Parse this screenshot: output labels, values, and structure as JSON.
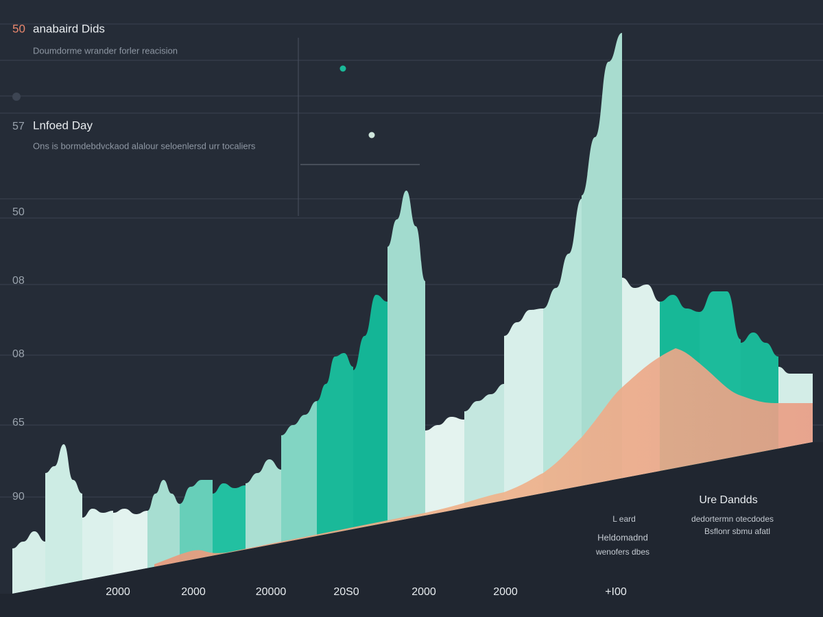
{
  "header": {
    "number": "50",
    "title": "anabaird Dids",
    "subtitle": "Doumdorme wrander forler reacision"
  },
  "annotation": {
    "number": "57",
    "title": "Lnfoed Day",
    "text": "Ons is bormdebdvckaod alalour seloenlersd urr tocaliers"
  },
  "y_labels": [
    "50",
    "08",
    "08",
    "65",
    "90"
  ],
  "x_labels": [
    "2000",
    "2000",
    "20000",
    "20S0",
    "2000",
    "2000",
    "+I00"
  ],
  "legend_mid": [
    "L eard",
    "Heldomadnd",
    "wenofers dbes"
  ],
  "legend_right": {
    "title": "Ure Dandds",
    "lines": [
      "dedortermn otecdodes",
      "Bsflonr sbmu afatl"
    ]
  }
}
